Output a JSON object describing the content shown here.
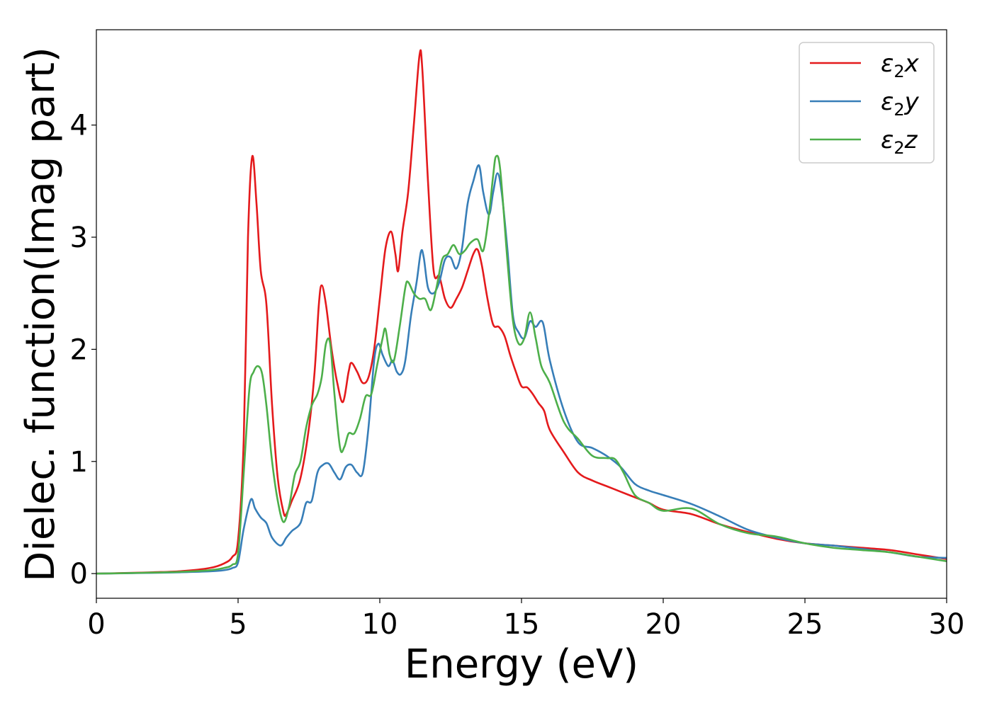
{
  "chart_data": {
    "type": "line",
    "title": "",
    "xlabel": "Energy (eV)",
    "ylabel": "Dielec. function(Imag part)",
    "xlim": [
      0,
      30
    ],
    "ylim": [
      -0.22,
      4.85
    ],
    "xticks": [
      0,
      5,
      10,
      15,
      20,
      25,
      30
    ],
    "yticks": [
      0,
      1,
      2,
      3,
      4
    ],
    "grid": false,
    "legend_position": "top-right",
    "series": [
      {
        "name": "ε₂x",
        "label_base": "ε",
        "label_sub": "2",
        "label_var": "x",
        "color": "#e41a1c",
        "points": [
          [
            0,
            0.0
          ],
          [
            1,
            0.005
          ],
          [
            2,
            0.012
          ],
          [
            3,
            0.022
          ],
          [
            4,
            0.05
          ],
          [
            4.5,
            0.09
          ],
          [
            4.8,
            0.15
          ],
          [
            5.0,
            0.3
          ],
          [
            5.2,
            1.2
          ],
          [
            5.35,
            3.0
          ],
          [
            5.5,
            3.72
          ],
          [
            5.65,
            3.3
          ],
          [
            5.8,
            2.7
          ],
          [
            6.0,
            2.4
          ],
          [
            6.2,
            1.5
          ],
          [
            6.4,
            0.85
          ],
          [
            6.6,
            0.55
          ],
          [
            6.7,
            0.53
          ],
          [
            6.9,
            0.65
          ],
          [
            7.2,
            0.85
          ],
          [
            7.5,
            1.3
          ],
          [
            7.7,
            1.8
          ],
          [
            7.85,
            2.4
          ],
          [
            7.95,
            2.57
          ],
          [
            8.1,
            2.4
          ],
          [
            8.3,
            2.0
          ],
          [
            8.5,
            1.7
          ],
          [
            8.7,
            1.53
          ],
          [
            8.9,
            1.8
          ],
          [
            9.0,
            1.88
          ],
          [
            9.2,
            1.8
          ],
          [
            9.4,
            1.7
          ],
          [
            9.6,
            1.75
          ],
          [
            9.8,
            2.0
          ],
          [
            10.0,
            2.45
          ],
          [
            10.2,
            2.9
          ],
          [
            10.4,
            3.05
          ],
          [
            10.55,
            2.85
          ],
          [
            10.65,
            2.7
          ],
          [
            10.8,
            3.05
          ],
          [
            11.0,
            3.4
          ],
          [
            11.2,
            4.0
          ],
          [
            11.4,
            4.62
          ],
          [
            11.5,
            4.5
          ],
          [
            11.7,
            3.5
          ],
          [
            11.9,
            2.7
          ],
          [
            12.1,
            2.65
          ],
          [
            12.3,
            2.45
          ],
          [
            12.5,
            2.37
          ],
          [
            12.7,
            2.45
          ],
          [
            12.9,
            2.55
          ],
          [
            13.1,
            2.7
          ],
          [
            13.3,
            2.85
          ],
          [
            13.45,
            2.89
          ],
          [
            13.6,
            2.75
          ],
          [
            13.8,
            2.45
          ],
          [
            14.0,
            2.22
          ],
          [
            14.2,
            2.2
          ],
          [
            14.4,
            2.12
          ],
          [
            14.6,
            1.95
          ],
          [
            14.8,
            1.8
          ],
          [
            15.0,
            1.67
          ],
          [
            15.2,
            1.66
          ],
          [
            15.4,
            1.6
          ],
          [
            15.6,
            1.52
          ],
          [
            15.8,
            1.45
          ],
          [
            16.0,
            1.28
          ],
          [
            16.5,
            1.08
          ],
          [
            17.0,
            0.9
          ],
          [
            17.5,
            0.83
          ],
          [
            18.0,
            0.78
          ],
          [
            18.5,
            0.73
          ],
          [
            19.0,
            0.68
          ],
          [
            19.5,
            0.63
          ],
          [
            20.0,
            0.57
          ],
          [
            21.0,
            0.53
          ],
          [
            22.0,
            0.44
          ],
          [
            23.0,
            0.37
          ],
          [
            24.0,
            0.31
          ],
          [
            25.0,
            0.27
          ],
          [
            26.0,
            0.25
          ],
          [
            27.0,
            0.23
          ],
          [
            28.0,
            0.21
          ],
          [
            29.0,
            0.17
          ],
          [
            30.0,
            0.13
          ]
        ]
      },
      {
        "name": "ε₂y",
        "label_base": "ε",
        "label_sub": "2",
        "label_var": "y",
        "color": "#377eb8",
        "points": [
          [
            0,
            0.0
          ],
          [
            1,
            0.003
          ],
          [
            2,
            0.007
          ],
          [
            3,
            0.012
          ],
          [
            4,
            0.02
          ],
          [
            4.5,
            0.03
          ],
          [
            4.8,
            0.05
          ],
          [
            5.0,
            0.1
          ],
          [
            5.2,
            0.4
          ],
          [
            5.45,
            0.66
          ],
          [
            5.6,
            0.58
          ],
          [
            5.8,
            0.5
          ],
          [
            6.0,
            0.45
          ],
          [
            6.2,
            0.32
          ],
          [
            6.5,
            0.25
          ],
          [
            6.7,
            0.32
          ],
          [
            6.9,
            0.38
          ],
          [
            7.2,
            0.45
          ],
          [
            7.4,
            0.63
          ],
          [
            7.6,
            0.65
          ],
          [
            7.8,
            0.9
          ],
          [
            8.0,
            0.97
          ],
          [
            8.2,
            0.98
          ],
          [
            8.4,
            0.9
          ],
          [
            8.6,
            0.84
          ],
          [
            8.8,
            0.95
          ],
          [
            9.0,
            0.97
          ],
          [
            9.2,
            0.9
          ],
          [
            9.4,
            0.9
          ],
          [
            9.6,
            1.3
          ],
          [
            9.8,
            1.9
          ],
          [
            9.95,
            2.05
          ],
          [
            10.1,
            1.95
          ],
          [
            10.3,
            1.85
          ],
          [
            10.45,
            1.9
          ],
          [
            10.6,
            1.8
          ],
          [
            10.75,
            1.78
          ],
          [
            10.9,
            1.9
          ],
          [
            11.1,
            2.3
          ],
          [
            11.3,
            2.6
          ],
          [
            11.45,
            2.87
          ],
          [
            11.55,
            2.82
          ],
          [
            11.7,
            2.55
          ],
          [
            11.9,
            2.5
          ],
          [
            12.1,
            2.6
          ],
          [
            12.3,
            2.8
          ],
          [
            12.5,
            2.82
          ],
          [
            12.7,
            2.72
          ],
          [
            12.9,
            2.9
          ],
          [
            13.1,
            3.3
          ],
          [
            13.3,
            3.5
          ],
          [
            13.5,
            3.64
          ],
          [
            13.65,
            3.4
          ],
          [
            13.85,
            3.2
          ],
          [
            14.0,
            3.4
          ],
          [
            14.15,
            3.57
          ],
          [
            14.3,
            3.4
          ],
          [
            14.5,
            2.9
          ],
          [
            14.7,
            2.3
          ],
          [
            14.9,
            2.15
          ],
          [
            15.1,
            2.1
          ],
          [
            15.3,
            2.25
          ],
          [
            15.5,
            2.2
          ],
          [
            15.75,
            2.24
          ],
          [
            16.0,
            1.9
          ],
          [
            16.5,
            1.45
          ],
          [
            17.0,
            1.17
          ],
          [
            17.5,
            1.12
          ],
          [
            18.0,
            1.05
          ],
          [
            18.5,
            0.95
          ],
          [
            19.0,
            0.8
          ],
          [
            19.5,
            0.74
          ],
          [
            20.0,
            0.7
          ],
          [
            21.0,
            0.62
          ],
          [
            22.0,
            0.51
          ],
          [
            23.0,
            0.39
          ],
          [
            24.0,
            0.32
          ],
          [
            25.0,
            0.27
          ],
          [
            26.0,
            0.25
          ],
          [
            27.0,
            0.22
          ],
          [
            28.0,
            0.19
          ],
          [
            29.0,
            0.15
          ],
          [
            30.0,
            0.14
          ]
        ]
      },
      {
        "name": "ε₂z",
        "label_base": "ε",
        "label_sub": "2",
        "label_var": "z",
        "color": "#4daf4a",
        "points": [
          [
            0,
            0.0
          ],
          [
            1,
            0.004
          ],
          [
            2,
            0.009
          ],
          [
            3,
            0.016
          ],
          [
            4,
            0.03
          ],
          [
            4.5,
            0.05
          ],
          [
            4.8,
            0.08
          ],
          [
            5.0,
            0.18
          ],
          [
            5.2,
            0.9
          ],
          [
            5.4,
            1.65
          ],
          [
            5.55,
            1.8
          ],
          [
            5.7,
            1.85
          ],
          [
            5.85,
            1.78
          ],
          [
            6.0,
            1.5
          ],
          [
            6.2,
            1.0
          ],
          [
            6.4,
            0.65
          ],
          [
            6.6,
            0.46
          ],
          [
            6.8,
            0.6
          ],
          [
            7.0,
            0.88
          ],
          [
            7.2,
            1.0
          ],
          [
            7.4,
            1.3
          ],
          [
            7.6,
            1.5
          ],
          [
            7.8,
            1.6
          ],
          [
            7.95,
            1.75
          ],
          [
            8.1,
            2.05
          ],
          [
            8.25,
            2.05
          ],
          [
            8.4,
            1.6
          ],
          [
            8.6,
            1.12
          ],
          [
            8.75,
            1.13
          ],
          [
            8.9,
            1.25
          ],
          [
            9.1,
            1.25
          ],
          [
            9.3,
            1.38
          ],
          [
            9.5,
            1.58
          ],
          [
            9.7,
            1.6
          ],
          [
            9.9,
            1.85
          ],
          [
            10.1,
            2.1
          ],
          [
            10.2,
            2.18
          ],
          [
            10.35,
            1.95
          ],
          [
            10.5,
            1.9
          ],
          [
            10.7,
            2.2
          ],
          [
            10.9,
            2.55
          ],
          [
            11.0,
            2.6
          ],
          [
            11.2,
            2.5
          ],
          [
            11.4,
            2.45
          ],
          [
            11.6,
            2.45
          ],
          [
            11.8,
            2.35
          ],
          [
            12.0,
            2.55
          ],
          [
            12.2,
            2.8
          ],
          [
            12.4,
            2.85
          ],
          [
            12.6,
            2.93
          ],
          [
            12.8,
            2.85
          ],
          [
            13.0,
            2.88
          ],
          [
            13.2,
            2.95
          ],
          [
            13.45,
            2.98
          ],
          [
            13.65,
            2.88
          ],
          [
            13.85,
            3.2
          ],
          [
            14.0,
            3.55
          ],
          [
            14.1,
            3.72
          ],
          [
            14.25,
            3.6
          ],
          [
            14.5,
            2.8
          ],
          [
            14.7,
            2.25
          ],
          [
            14.9,
            2.05
          ],
          [
            15.1,
            2.1
          ],
          [
            15.3,
            2.33
          ],
          [
            15.5,
            2.1
          ],
          [
            15.7,
            1.85
          ],
          [
            16.0,
            1.7
          ],
          [
            16.5,
            1.35
          ],
          [
            17.0,
            1.2
          ],
          [
            17.5,
            1.05
          ],
          [
            18.0,
            1.03
          ],
          [
            18.3,
            1.02
          ],
          [
            18.6,
            0.9
          ],
          [
            19.0,
            0.7
          ],
          [
            19.5,
            0.63
          ],
          [
            20.0,
            0.56
          ],
          [
            21.0,
            0.58
          ],
          [
            22.0,
            0.44
          ],
          [
            23.0,
            0.36
          ],
          [
            24.0,
            0.33
          ],
          [
            25.0,
            0.27
          ],
          [
            26.0,
            0.23
          ],
          [
            27.0,
            0.21
          ],
          [
            28.0,
            0.19
          ],
          [
            29.0,
            0.15
          ],
          [
            30.0,
            0.11
          ]
        ]
      }
    ]
  }
}
